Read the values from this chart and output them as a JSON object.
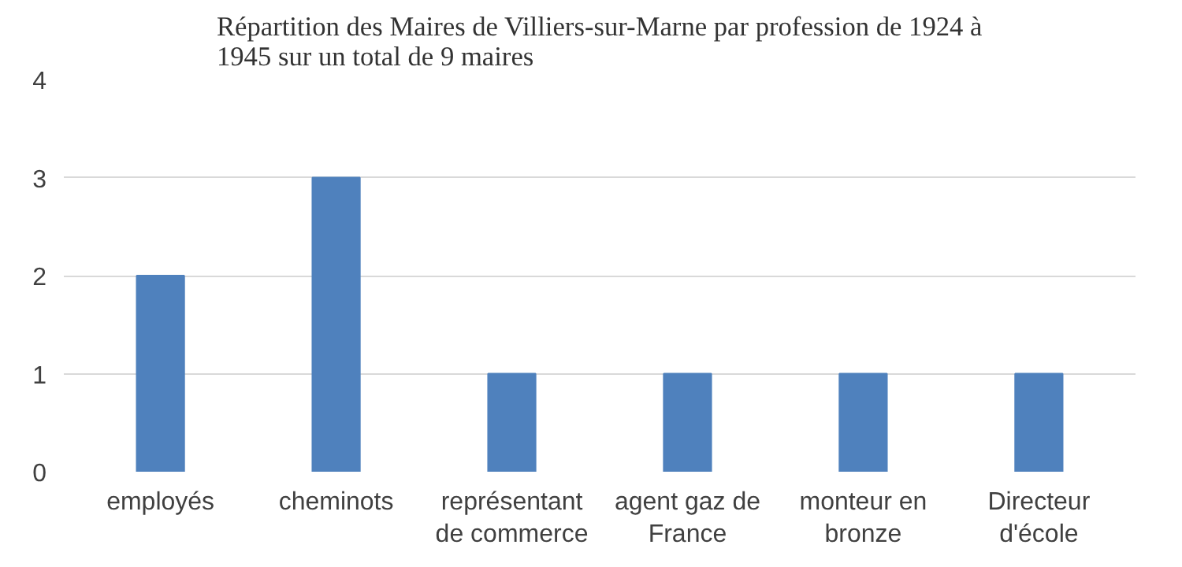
{
  "chart_data": {
    "type": "bar",
    "title": "Répartition des Maires de Villiers-sur-Marne par profession de 1924 à 1945 sur un total de 9 maires",
    "categories": [
      "employés",
      "cheminots",
      "représentant de commerce",
      "agent gaz de France",
      "monteur en bronze",
      "Directeur d'école"
    ],
    "values": [
      2,
      3,
      1,
      1,
      1,
      1
    ],
    "color": "#4f81bd",
    "ylim": [
      0,
      4
    ],
    "yticks": [
      0,
      1,
      2,
      3,
      4
    ],
    "grid": "y"
  }
}
